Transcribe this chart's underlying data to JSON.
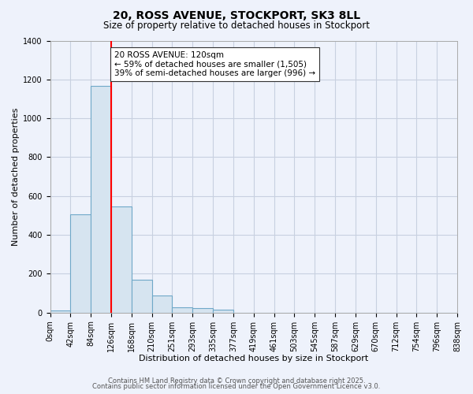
{
  "title": "20, ROSS AVENUE, STOCKPORT, SK3 8LL",
  "subtitle": "Size of property relative to detached houses in Stockport",
  "xlabel": "Distribution of detached houses by size in Stockport",
  "ylabel": "Number of detached properties",
  "bar_values": [
    10,
    505,
    1165,
    545,
    170,
    88,
    28,
    25,
    15,
    0,
    0,
    0,
    0,
    0,
    0,
    0,
    0,
    0,
    0,
    0
  ],
  "bin_labels": [
    "0sqm",
    "42sqm",
    "84sqm",
    "126sqm",
    "168sqm",
    "210sqm",
    "251sqm",
    "293sqm",
    "335sqm",
    "377sqm",
    "419sqm",
    "461sqm",
    "503sqm",
    "545sqm",
    "587sqm",
    "629sqm",
    "670sqm",
    "712sqm",
    "754sqm",
    "796sqm",
    "838sqm"
  ],
  "bar_color": "#d6e4f0",
  "bar_edge_color": "#6fa8c8",
  "vline_x": 3,
  "vline_color": "red",
  "annotation_title": "20 ROSS AVENUE: 120sqm",
  "annotation_line1": "← 59% of detached houses are smaller (1,505)",
  "annotation_line2": "39% of semi-detached houses are larger (996) →",
  "annotation_box_color": "white",
  "annotation_box_edge": "#333333",
  "ylim": [
    0,
    1400
  ],
  "yticks": [
    0,
    200,
    400,
    600,
    800,
    1000,
    1200,
    1400
  ],
  "footer1": "Contains HM Land Registry data © Crown copyright and database right 2025.",
  "footer2": "Contains public sector information licensed under the Open Government Licence v3.0.",
  "background_color": "#eef2fb",
  "grid_color": "#c8d0e0",
  "title_fontsize": 10,
  "subtitle_fontsize": 8.5,
  "axis_label_fontsize": 8,
  "tick_fontsize": 7,
  "annotation_fontsize": 7.5,
  "footer_fontsize": 6
}
